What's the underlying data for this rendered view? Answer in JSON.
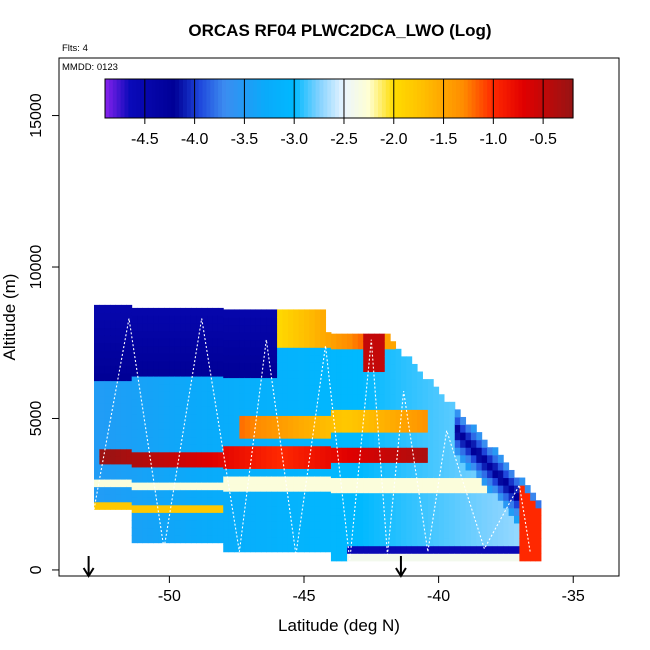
{
  "chart_data": {
    "type": "heatmap",
    "title": "ORCAS RF04 PLWC2DCA_LWO (Log)",
    "xlabel": "Latitude (deg N)",
    "ylabel": "Altitude (m)",
    "annotations": {
      "flights": "Flts: 4",
      "date": "MMDD: 0123"
    },
    "xlim": [
      -54.1,
      -33.3
    ],
    "ylim": [
      -200,
      16900
    ],
    "x_ticks": [
      -50,
      -45,
      -40,
      -35
    ],
    "x_tick_labels": [
      "-50",
      "-45",
      "-40",
      "-35"
    ],
    "y_ticks": [
      0,
      5000,
      10000,
      15000
    ],
    "y_tick_labels": [
      "0",
      "5000",
      "10000",
      "15000"
    ],
    "colorbar": {
      "range": [
        -4.9,
        -0.2
      ],
      "ticks": [
        -4.5,
        -4.0,
        -3.5,
        -3.0,
        -2.5,
        -2.0,
        -1.5,
        -1.0,
        -0.5
      ],
      "tick_labels": [
        "-4.5",
        "-4.0",
        "-3.5",
        "-3.0",
        "-2.5",
        "-2.0",
        "-1.5",
        "-1.0",
        "-0.5"
      ]
    },
    "markers": [
      {
        "label": "takeoff arrow",
        "lat": -53.0
      },
      {
        "label": "landing arrow",
        "lat": -41.4
      }
    ],
    "flight_track_lat": [
      -52.8,
      -51.5,
      -50.2,
      -48.8,
      -47.4,
      -46.4,
      -45.3,
      -44.2,
      -43.3,
      -42.5,
      -41.9,
      -41.3,
      -40.4,
      -39.7,
      -38.3,
      -37.0,
      -36.6
    ],
    "flight_track_alt": [
      2000,
      8300,
      700,
      8300,
      600,
      7600,
      500,
      7400,
      300,
      7600,
      500,
      5900,
      600,
      4600,
      700,
      2800,
      600
    ],
    "field_description": "log10 liquid water content binned by latitude and altitude along the flight"
  }
}
